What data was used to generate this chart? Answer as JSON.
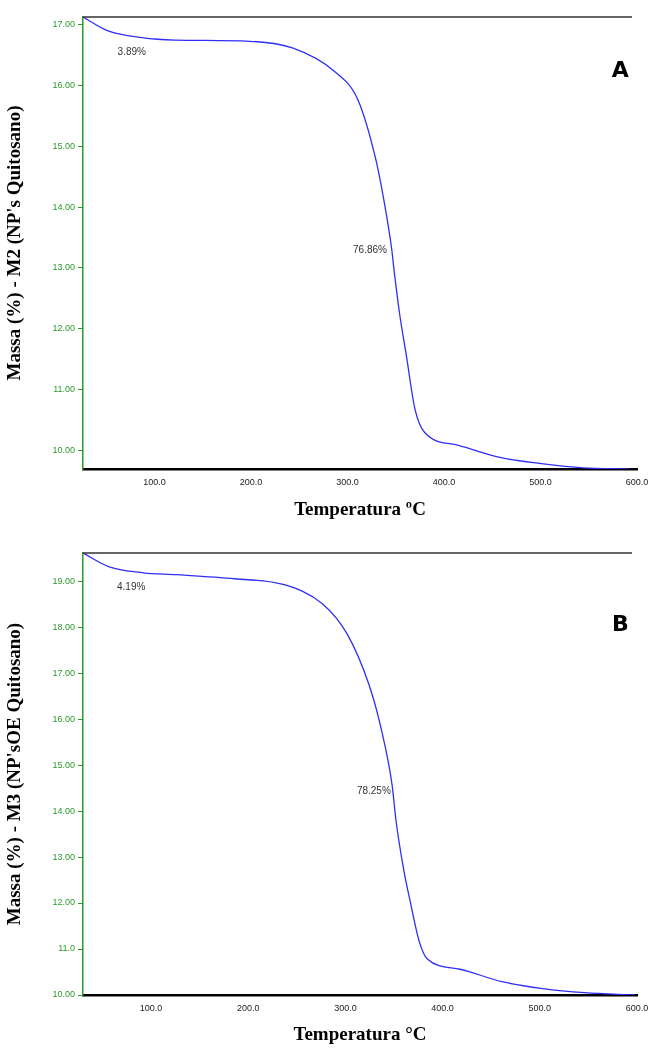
{
  "chart_data": [
    {
      "type": "line",
      "xlabel": "Temperatura ºC",
      "ylabel": "Massa (%) - M2 (NP's Quitosano)",
      "xlim": [
        26,
        600
      ],
      "ylim": [
        9.69,
        17.13
      ],
      "xticks": [
        {
          "value": 100,
          "label": "100.0"
        },
        {
          "value": 200,
          "label": "200.0"
        },
        {
          "value": 300,
          "label": "300.0"
        },
        {
          "value": 400,
          "label": "400.0"
        },
        {
          "value": 500,
          "label": "500.0"
        },
        {
          "value": 600,
          "label": "600.0"
        }
      ],
      "yticks": [
        {
          "value": 10,
          "label": "10.00"
        },
        {
          "value": 11,
          "label": "11.00"
        },
        {
          "value": 12,
          "label": "12.00"
        },
        {
          "value": 13,
          "label": "13.00"
        },
        {
          "value": 14,
          "label": "14.00"
        },
        {
          "value": 15,
          "label": "15.00"
        },
        {
          "value": 16,
          "label": "16.00"
        },
        {
          "value": 17,
          "label": "17.00"
        }
      ],
      "grid": false,
      "legend": false,
      "marker": "none",
      "line_style": "solid",
      "annotations": [
        "3.89%",
        "76.86%",
        "A"
      ],
      "series": [
        {
          "color": "#2f2ff5",
          "x": [
            26,
            52,
            87,
            121,
            199,
            243,
            286,
            311,
            329,
            337,
            346,
            348,
            354,
            361,
            370,
            380,
            415,
            458,
            501,
            544,
            592
          ],
          "values": [
            17.13,
            16.9,
            16.79,
            16.75,
            16.73,
            16.62,
            16.24,
            15.76,
            14.81,
            14.18,
            13.29,
            13.0,
            12.25,
            11.56,
            10.67,
            10.29,
            10.08,
            9.88,
            9.78,
            9.71,
            9.69
          ]
        }
      ]
    },
    {
      "type": "line",
      "xlabel": "Temperatura °C",
      "ylabel": "Massa (%) - M3 (NP'sOE Quitosano)",
      "xlim": [
        30,
        600
      ],
      "ylim": [
        10,
        19.61
      ],
      "xticks": [
        {
          "value": 100,
          "label": "100.0"
        },
        {
          "value": 200,
          "label": "200.0"
        },
        {
          "value": 300,
          "label": "300.0"
        },
        {
          "value": 400,
          "label": "400.0"
        },
        {
          "value": 500,
          "label": "500.0"
        },
        {
          "value": 600,
          "label": "600.0"
        }
      ],
      "yticks": [
        {
          "value": 10,
          "label": "10.00"
        },
        {
          "value": 11,
          "label": "11.0"
        },
        {
          "value": 12,
          "label": "12.00"
        },
        {
          "value": 13,
          "label": "13.00"
        },
        {
          "value": 14,
          "label": "14.00"
        },
        {
          "value": 15,
          "label": "15.00"
        },
        {
          "value": 16,
          "label": "16.00"
        },
        {
          "value": 17,
          "label": "17.00"
        },
        {
          "value": 18,
          "label": "18.00"
        },
        {
          "value": 19,
          "label": "19.00"
        }
      ],
      "grid": false,
      "legend": false,
      "marker": "none",
      "line_style": "solid",
      "annotations": [
        "4.19%",
        "78.25%",
        "B"
      ],
      "series": [
        {
          "color": "#2f2ff5",
          "x": [
            30,
            57,
            92,
            126,
            186,
            237,
            276,
            302,
            324,
            336,
            348,
            352,
            360,
            367,
            376,
            384,
            418,
            461,
            503,
            546,
            598
          ],
          "values": [
            19.61,
            19.31,
            19.18,
            19.14,
            19.05,
            18.92,
            18.51,
            17.84,
            16.76,
            15.86,
            14.57,
            13.8,
            12.72,
            12.0,
            11.16,
            10.79,
            10.56,
            10.29,
            10.14,
            10.05,
            10.0
          ]
        }
      ]
    }
  ]
}
